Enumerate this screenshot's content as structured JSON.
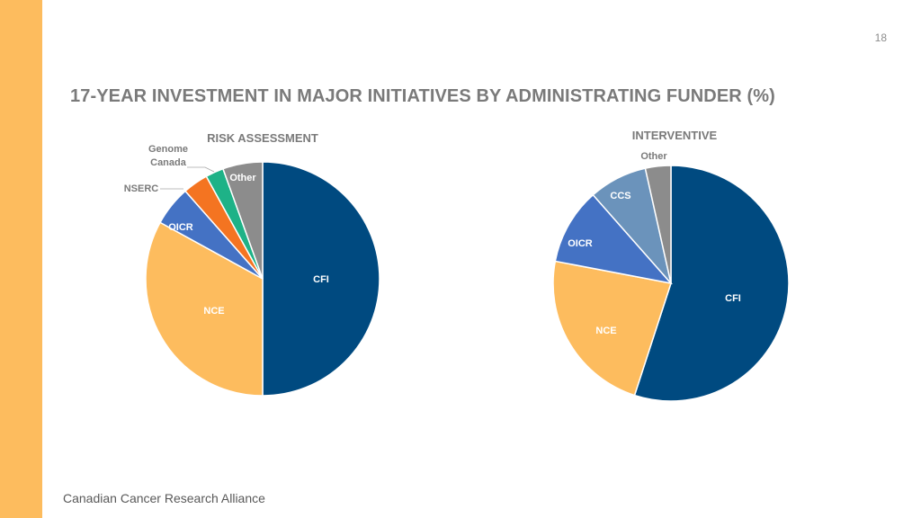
{
  "page": {
    "number": "18",
    "title": "17-YEAR INVESTMENT IN MAJOR INITIATIVES BY ADMINISTRATING FUNDER (%)",
    "footer": "Canadian Cancer Research Alliance"
  },
  "chart_data": [
    {
      "type": "pie",
      "title": "RISK ASSESSMENT",
      "slices": [
        {
          "label": "CFI",
          "value": 50.0,
          "color": "#004A80"
        },
        {
          "label": "NCE",
          "value": 33.0,
          "color": "#FDBC5E"
        },
        {
          "label": "OICR",
          "value": 5.5,
          "color": "#4472C4"
        },
        {
          "label": "NSERC",
          "value": 3.5,
          "color": "#F47421"
        },
        {
          "label": "Genome Canada",
          "value": 2.5,
          "color": "#1EB287"
        },
        {
          "label": "Other",
          "value": 5.5,
          "color": "#8C8C8C"
        }
      ]
    },
    {
      "type": "pie",
      "title": "INTERVENTIVE",
      "slices": [
        {
          "label": "CFI",
          "value": 55.0,
          "color": "#004A80"
        },
        {
          "label": "NCE",
          "value": 23.0,
          "color": "#FDBC5E"
        },
        {
          "label": "OICR",
          "value": 10.5,
          "color": "#4472C4"
        },
        {
          "label": "CCS",
          "value": 8.0,
          "color": "#6B93BB"
        },
        {
          "label": "Other",
          "value": 3.5,
          "color": "#8C8C8C"
        }
      ]
    }
  ]
}
